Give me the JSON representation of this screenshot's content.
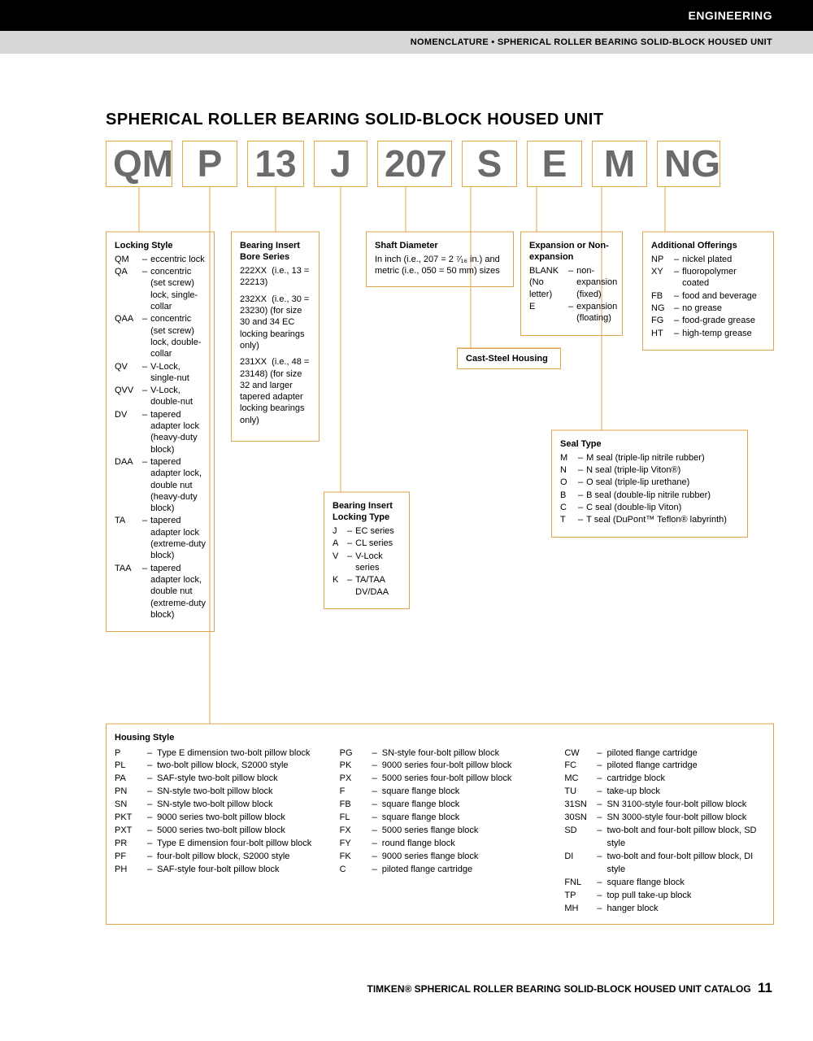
{
  "header": {
    "section": "ENGINEERING",
    "breadcrumb": "NOMENCLATURE • SPHERICAL ROLLER BEARING SOLID-BLOCK HOUSED UNIT"
  },
  "title": "SPHERICAL ROLLER BEARING SOLID-BLOCK HOUSED UNIT",
  "codes": [
    "QM",
    "P",
    "13",
    "J",
    "207",
    "S",
    "E",
    "M",
    "NG"
  ],
  "locking_style": {
    "title": "Locking Style",
    "items": [
      {
        "k": "QM",
        "v": "eccentric lock"
      },
      {
        "k": "QA",
        "v": "concentric (set screw) lock, single-collar"
      },
      {
        "k": "QAA",
        "v": "concentric (set screw) lock, double-collar"
      },
      {
        "k": "QV",
        "v": "V-Lock, single-nut"
      },
      {
        "k": "QVV",
        "v": "V-Lock, double-nut"
      },
      {
        "k": "DV",
        "v": "tapered adapter lock (heavy-duty block)"
      },
      {
        "k": "DAA",
        "v": "tapered adapter lock, double nut (heavy-duty block)"
      },
      {
        "k": "TA",
        "v": "tapered adapter lock (extreme-duty block)"
      },
      {
        "k": "TAA",
        "v": "tapered adapter lock, double nut (extreme-duty block)"
      }
    ]
  },
  "bore_series": {
    "title": "Bearing Insert Bore Series",
    "items": [
      {
        "k": "222XX",
        "v": "(i.e., 13 = 22213)"
      },
      {
        "k": "232XX",
        "v": "(i.e., 30 = 23230) (for size 30 and 34 EC locking bearings only)"
      },
      {
        "k": "231XX",
        "v": "(i.e., 48 = 23148) (for size 32 and larger tapered adapter locking bearings only)"
      }
    ]
  },
  "locking_type": {
    "title": "Bearing Insert Locking Type",
    "items": [
      {
        "k": "J",
        "v": "EC series"
      },
      {
        "k": "A",
        "v": "CL series"
      },
      {
        "k": "V",
        "v": "V-Lock series"
      },
      {
        "k": "K",
        "v": "TA/TAA DV/DAA"
      }
    ]
  },
  "shaft_diameter": {
    "title": "Shaft Diameter",
    "text": "In inch (i.e., 207 = 2 ⁷⁄₁₆ in.) and metric (i.e., 050 = 50 mm) sizes"
  },
  "cast_steel": "Cast-Steel Housing",
  "expansion": {
    "title": "Expansion or Non-expansion",
    "items": [
      {
        "k": "BLANK (No letter)",
        "v": "non-expansion (fixed)"
      },
      {
        "k": "E",
        "v": "expansion (floating)"
      }
    ]
  },
  "seal_type": {
    "title": "Seal Type",
    "items": [
      {
        "k": "M",
        "v": "M seal (triple-lip nitrile rubber)"
      },
      {
        "k": "N",
        "v": "N seal (triple-lip Viton®)"
      },
      {
        "k": "O",
        "v": "O seal (triple-lip urethane)"
      },
      {
        "k": "B",
        "v": "B seal (double-lip nitrile rubber)"
      },
      {
        "k": "C",
        "v": "C seal (double-lip Viton)"
      },
      {
        "k": "T",
        "v": "T seal (DuPont™ Teflon® labyrinth)"
      }
    ]
  },
  "additional": {
    "title": "Additional Offerings",
    "items": [
      {
        "k": "NP",
        "v": "nickel plated"
      },
      {
        "k": "XY",
        "v": "fluoropolymer coated"
      },
      {
        "k": "FB",
        "v": "food and beverage"
      },
      {
        "k": "NG",
        "v": "no grease"
      },
      {
        "k": "FG",
        "v": "food-grade grease"
      },
      {
        "k": "HT",
        "v": "high-temp grease"
      }
    ]
  },
  "housing": {
    "title": "Housing Style",
    "cols": [
      [
        {
          "k": "P",
          "v": "Type E dimension two-bolt pillow block"
        },
        {
          "k": "PL",
          "v": "two-bolt pillow block, S2000 style"
        },
        {
          "k": "PA",
          "v": "SAF-style two-bolt pillow block"
        },
        {
          "k": "PN",
          "v": "SN-style two-bolt pillow block"
        },
        {
          "k": "SN",
          "v": "SN-style two-bolt pillow block"
        },
        {
          "k": "PKT",
          "v": "9000 series two-bolt pillow block"
        },
        {
          "k": "PXT",
          "v": "5000 series two-bolt pillow block"
        },
        {
          "k": "PR",
          "v": "Type E dimension four-bolt pillow block"
        },
        {
          "k": "PF",
          "v": "four-bolt pillow block, S2000 style"
        },
        {
          "k": "PH",
          "v": "SAF-style four-bolt pillow block"
        }
      ],
      [
        {
          "k": "PG",
          "v": "SN-style four-bolt pillow block"
        },
        {
          "k": "PK",
          "v": "9000 series four-bolt pillow block"
        },
        {
          "k": "PX",
          "v": "5000 series four-bolt pillow block"
        },
        {
          "k": "F",
          "v": "square flange block"
        },
        {
          "k": "FB",
          "v": "square flange block"
        },
        {
          "k": "FL",
          "v": "square flange block"
        },
        {
          "k": "FX",
          "v": "5000 series flange block"
        },
        {
          "k": "FY",
          "v": "round flange block"
        },
        {
          "k": "FK",
          "v": "9000 series flange block"
        },
        {
          "k": "C",
          "v": "piloted flange cartridge"
        }
      ],
      [
        {
          "k": "CW",
          "v": "piloted flange cartridge"
        },
        {
          "k": "FC",
          "v": "piloted flange cartridge"
        },
        {
          "k": "MC",
          "v": "cartridge block"
        },
        {
          "k": "TU",
          "v": "take-up block"
        },
        {
          "k": "31SN",
          "v": "SN 3100-style four-bolt pillow block"
        },
        {
          "k": "30SN",
          "v": "SN 3000-style four-bolt pillow block"
        },
        {
          "k": "SD",
          "v": "two-bolt and four-bolt pillow block, SD style"
        },
        {
          "k": "DI",
          "v": "two-bolt and four-bolt pillow block, DI style"
        },
        {
          "k": "FNL",
          "v": "square flange block"
        },
        {
          "k": "TP",
          "v": "top pull take-up block"
        },
        {
          "k": "MH",
          "v": "hanger block"
        }
      ]
    ]
  },
  "footer": {
    "brand": "TIMKEN®",
    "text": "SPHERICAL ROLLER BEARING SOLID-BLOCK HOUSED UNIT CATALOG",
    "page": "11"
  },
  "colors": {
    "accent": "#dfa34a",
    "code_text": "#6b6b6b",
    "gray_bar": "#d8d8d8"
  }
}
